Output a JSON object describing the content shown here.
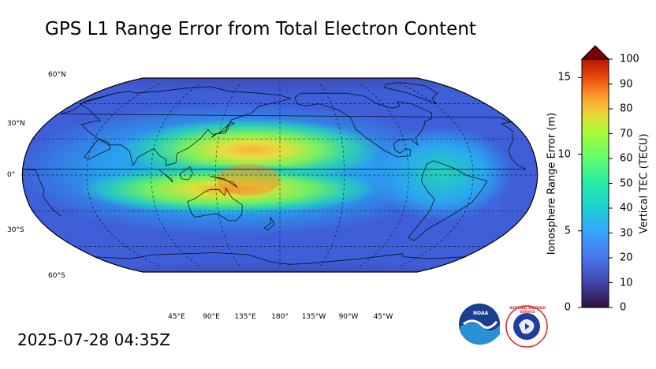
{
  "title": "GPS L1 Range Error from Total Electron Content",
  "timestamp": "2025-07-28 04:35Z",
  "logos": {
    "noaa_text": "NOAA",
    "nws_text": "NATIONAL WEATHER SERVICE"
  },
  "chart_data": {
    "type": "heatmap",
    "title": "GPS L1 Range Error from Total Electron Content",
    "projection": "Robinson, centered on 180°",
    "lat_labels": [
      "60°N",
      "30°N",
      "0°",
      "30°S",
      "60°S"
    ],
    "lat_values": [
      60,
      30,
      0,
      -30,
      -60
    ],
    "lon_labels": [
      "45°E",
      "90°E",
      "135°E",
      "180°",
      "135°W",
      "90°W",
      "45°W"
    ],
    "lon_values": [
      45,
      90,
      135,
      180,
      -135,
      -90,
      -45
    ],
    "colorbar": {
      "label_right": "Vertical TEC (TECU)",
      "range_right": [
        0,
        100
      ],
      "ticks_right": [
        "0",
        "10",
        "20",
        "30",
        "40",
        "50",
        "60",
        "70",
        "80",
        "90",
        "100"
      ],
      "label_left": "Ionosphere Range Error (m)",
      "range_left": [
        0,
        16.2
      ],
      "ticks_left": [
        "0",
        "5",
        "10",
        "15"
      ],
      "extend": "max"
    },
    "tec_features": [
      {
        "name": "equatorial-anomaly-north",
        "lat": 12,
        "lon_from": 80,
        "lon_to": 200,
        "peak_tecu": 62
      },
      {
        "name": "equatorial-anomaly-south",
        "lat": -12,
        "lon_from": 85,
        "lon_to": 210,
        "peak_tecu": 60
      },
      {
        "name": "peak",
        "lat": 0,
        "lon": 140,
        "peak_tecu": 70
      },
      {
        "name": "atlantic-low-bubble",
        "lat": -15,
        "lon": -35,
        "peak_tecu": 10
      }
    ],
    "grid": true
  }
}
